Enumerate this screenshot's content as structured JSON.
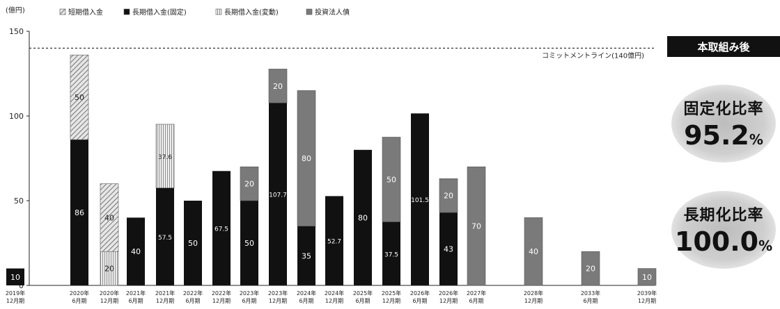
{
  "chart_data": {
    "type": "bar",
    "stacked": true,
    "ylabel": "(億円)",
    "ylim": [
      0,
      150
    ],
    "yticks": [
      "0",
      "50",
      "100",
      "150"
    ],
    "grid": false,
    "legend": [
      "短期借入金",
      "長期借入金(固定)",
      "長期借入金(変動)",
      "投資法人債"
    ],
    "categories": [
      [
        "2019年",
        "12月期"
      ],
      [
        "2020年",
        "6月期"
      ],
      [
        "2020年",
        "12月期"
      ],
      [
        "2021年",
        "6月期"
      ],
      [
        "2021年",
        "12月期"
      ],
      [
        "2022年",
        "6月期"
      ],
      [
        "2022年",
        "12月期"
      ],
      [
        "2023年",
        "6月期"
      ],
      [
        "2023年",
        "12月期"
      ],
      [
        "2024年",
        "6月期"
      ],
      [
        "2024年",
        "12月期"
      ],
      [
        "2025年",
        "6月期"
      ],
      [
        "2025年",
        "12月期"
      ],
      [
        "2026年",
        "6月期"
      ],
      [
        "2026年",
        "12月期"
      ],
      [
        "2027年",
        "6月期"
      ],
      [
        "2028年",
        "12月期"
      ],
      [
        "2033年",
        "6月期"
      ],
      [
        "2039年",
        "12月期"
      ]
    ],
    "series": [
      {
        "name": "長期借入金(固定)",
        "values": [
          10,
          86,
          0,
          40,
          57.5,
          50,
          67.5,
          50,
          107.7,
          35,
          52.7,
          80,
          37.5,
          101.5,
          43,
          0,
          0,
          0,
          0
        ],
        "labels": [
          "10",
          "86",
          "",
          "40",
          "57.5",
          "50",
          "67.5",
          "50",
          "107.7",
          "35",
          "52.7",
          "80",
          "37.5",
          "101.5",
          "43",
          "",
          "",
          "",
          ""
        ]
      },
      {
        "name": "長期借入金(変動)",
        "values": [
          0,
          0,
          20,
          0,
          37.6,
          0,
          0,
          0,
          0,
          0,
          0,
          0,
          0,
          0,
          0,
          0,
          0,
          0,
          0
        ],
        "labels": [
          "",
          "",
          "20",
          "",
          "37.6",
          "",
          "",
          "",
          "",
          "",
          "",
          "",
          "",
          "",
          "",
          "",
          "",
          "",
          ""
        ]
      },
      {
        "name": "投資法人債",
        "values": [
          0,
          0,
          0,
          0,
          0,
          0,
          0,
          20,
          20,
          80,
          0,
          0,
          50,
          0,
          20,
          70,
          40,
          20,
          10
        ],
        "labels": [
          "",
          "",
          "",
          "",
          "",
          "",
          "",
          "20",
          "20",
          "80",
          "",
          "",
          "50",
          "",
          "20",
          "70",
          "40",
          "20",
          "10"
        ]
      },
      {
        "name": "短期借入金",
        "values": [
          0,
          50,
          40,
          0,
          0,
          0,
          0,
          0,
          0,
          0,
          0,
          0,
          0,
          0,
          0,
          0,
          0,
          0,
          0
        ],
        "labels": [
          "",
          "50",
          "40",
          "",
          "",
          "",
          "",
          "",
          "",
          "",
          "",
          "",
          "",
          "",
          "",
          "",
          "",
          "",
          ""
        ]
      }
    ],
    "reference_line": {
      "value": 140,
      "label": "コミットメントライン(140億円)"
    },
    "colors": {
      "長期借入金(固定)": "#111111",
      "長期借入金(変動)": "#e8e8e8",
      "投資法人債": "#7a7a7a",
      "短期借入金": "#e3e3e3"
    }
  },
  "side_panel": {
    "title": "本取組み後",
    "fixed_ratio": {
      "label": "固定化比率",
      "value": "95.2",
      "unit": "%"
    },
    "long_ratio": {
      "label": "長期化比率",
      "value": "100.0",
      "unit": "%"
    }
  }
}
